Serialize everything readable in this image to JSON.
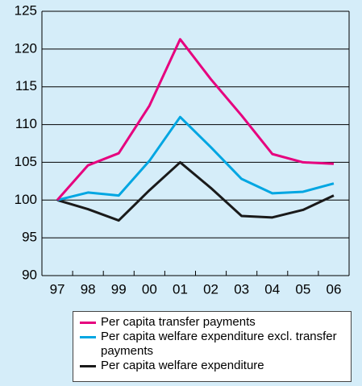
{
  "chart_data": {
    "type": "line",
    "categories": [
      "97",
      "98",
      "99",
      "00",
      "01",
      "02",
      "03",
      "04",
      "05",
      "06"
    ],
    "series": [
      {
        "name": "Per capita transfer payments",
        "color": "#e6007e",
        "values": [
          100,
          104.6,
          106.2,
          112.5,
          121.3,
          116,
          111.2,
          106.1,
          105,
          104.8
        ]
      },
      {
        "name": "Per capita welfare expenditure excl. transfer payments",
        "color": "#00a6e2",
        "values": [
          100,
          101,
          100.6,
          105.2,
          111,
          107,
          102.8,
          100.9,
          101.1,
          102.2
        ]
      },
      {
        "name": "Per capita welfare expenditure",
        "color": "#1a1a1a",
        "values": [
          100,
          98.8,
          97.3,
          101.3,
          105,
          101.6,
          97.9,
          97.7,
          98.7,
          100.6
        ]
      }
    ],
    "ylim": [
      90,
      125
    ],
    "yticks": [
      90,
      95,
      100,
      105,
      110,
      115,
      120,
      125
    ],
    "grid": true
  }
}
